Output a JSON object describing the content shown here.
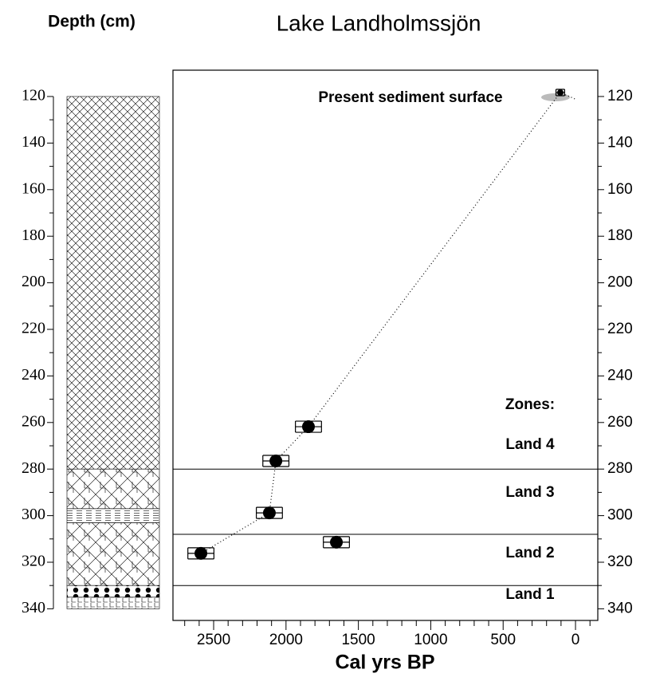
{
  "chart_data": {
    "type": "scatter",
    "title": "Lake Landholmssjön",
    "ylabel": "Depth (cm)",
    "xlabel": "Cal yrs BP",
    "annotation": "Present sediment surface",
    "xlim": [
      2781,
      -154
    ],
    "ylim": [
      108.7,
      345
    ],
    "xticks": [
      2500,
      2000,
      1500,
      1000,
      500,
      0
    ],
    "xminorticks": [
      2700,
      2600,
      2400,
      2300,
      2200,
      2100,
      1900,
      1800,
      1700,
      1600,
      1400,
      1300,
      1200,
      1100,
      900,
      800,
      700,
      600,
      400,
      300,
      200,
      100,
      -100
    ],
    "yticks": [
      120,
      140,
      160,
      180,
      200,
      220,
      240,
      260,
      280,
      300,
      320,
      340
    ],
    "yminorticks": [
      130,
      150,
      170,
      190,
      210,
      230,
      250,
      270,
      290,
      310,
      330
    ],
    "series": [
      {
        "color": "#000000",
        "x": [
          105,
          1845,
          2070,
          2115,
          1652,
          2588
        ],
        "y": [
          118.3,
          261.8,
          276.5,
          298.8,
          311.4,
          316.2
        ],
        "age_error": [
          30,
          90,
          90,
          90,
          90,
          90
        ]
      }
    ],
    "age_model": {
      "x": [
        5,
        105,
        1845,
        2070,
        2115,
        2588
      ],
      "y": [
        121,
        118.3,
        261.8,
        276.5,
        298.8,
        316.2
      ]
    },
    "zones": {
      "heading": "Zones:",
      "labels": [
        "Land 4",
        "Land 3",
        "Land 2",
        "Land 1"
      ],
      "boundaries": [
        280,
        308,
        330
      ]
    },
    "lithology": {
      "boundaries": [
        120,
        280,
        297,
        303,
        330,
        335,
        340
      ]
    }
  }
}
